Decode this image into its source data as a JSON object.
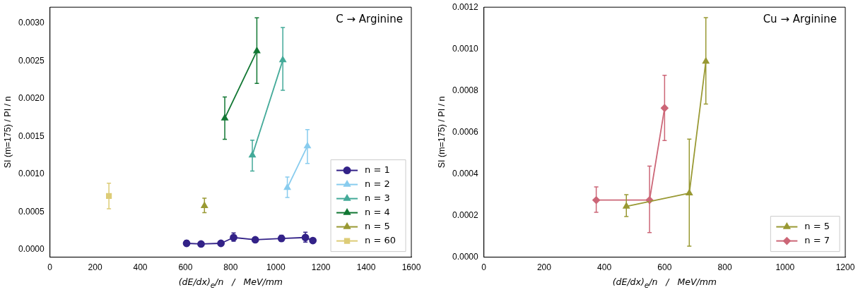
{
  "chart_data": [
    {
      "type": "line",
      "annotations": [
        "C → Arginine"
      ],
      "xlabel": "(dE/dx)$_{e}$/n   /   MeV/mm",
      "ylabel": "SI (m=175) / PI / n",
      "xlim": [
        0,
        1600
      ],
      "xticks": [
        0,
        200,
        400,
        600,
        800,
        1000,
        1200,
        1400,
        1600
      ],
      "ylim": [
        -0.0001,
        0.00321
      ],
      "yticks": [
        {
          "value": 0,
          "label": "0.0000"
        },
        {
          "value": 0.0005,
          "label": "0.0005"
        },
        {
          "value": 0.001,
          "label": "0.0010"
        },
        {
          "value": 0.0015,
          "label": "0.0015"
        },
        {
          "value": 0.002,
          "label": "0.0020"
        },
        {
          "value": 0.0025,
          "label": "0.0025"
        },
        {
          "value": 0.003,
          "label": "0.0030"
        }
      ],
      "legend": "bottom right",
      "grid": false,
      "series": [
        {
          "name": "n = 1",
          "color": "#332288",
          "marker": "circle",
          "x": [
            605,
            669,
            757,
            813,
            909,
            1025,
            1131,
            1164
          ],
          "values": [
            8.3e-05,
            7.4e-05,
            8.3e-05,
            0.00016,
            0.00013,
            0.000147,
            0.00016,
            0.00012
          ],
          "errors": [
            [
              5e-05,
              0.00012
            ],
            null,
            null,
            [
              0.00011,
              0.00022
            ],
            null,
            [
              0.00011,
              0.00019
            ],
            [
              0.0001,
              0.00023
            ],
            null
          ]
        },
        {
          "name": "n = 2",
          "color": "#88ccee",
          "marker": "triangle",
          "x": [
            1051,
            1140
          ],
          "values": [
            0.00082,
            0.00137
          ],
          "errors": [
            [
              0.00069,
              0.00096
            ],
            [
              0.00114,
              0.00159
            ]
          ]
        },
        {
          "name": "n = 3",
          "color": "#44aa99",
          "marker": "triangle",
          "x": [
            896,
            1031
          ],
          "values": [
            0.00125,
            0.00251
          ],
          "errors": [
            [
              0.00104,
              0.00145
            ],
            [
              0.00211,
              0.00294
            ]
          ]
        },
        {
          "name": "n = 4",
          "color": "#117733",
          "marker": "triangle",
          "x": [
            774,
            916
          ],
          "values": [
            0.00174,
            0.00263
          ],
          "errors": [
            [
              0.00146,
              0.00202
            ],
            [
              0.0022,
              0.00307
            ]
          ]
        },
        {
          "name": "n = 5",
          "color": "#999933",
          "marker": "triangle",
          "x": [
            684
          ],
          "values": [
            0.00058
          ],
          "errors": [
            [
              0.00049,
              0.00068
            ]
          ]
        },
        {
          "name": "n = 60",
          "color": "#ddcc77",
          "marker": "square",
          "x": [
            261
          ],
          "values": [
            0.00071
          ],
          "errors": [
            [
              0.00054,
              0.00088
            ]
          ]
        }
      ]
    },
    {
      "type": "line",
      "annotations": [
        "Cu → Arginine"
      ],
      "xlabel": "(dE/dx)$_{e}$/n   /   MeV/mm",
      "ylabel": "SI (m=175) / PI / n",
      "xlim": [
        0,
        1200
      ],
      "xticks": [
        0,
        200,
        400,
        600,
        800,
        1000,
        1200
      ],
      "ylim": [
        0,
        0.0012
      ],
      "yticks": [
        {
          "value": 0,
          "label": "0.0000"
        },
        {
          "value": 0.0002,
          "label": "0.0002"
        },
        {
          "value": 0.0004,
          "label": "0.0004"
        },
        {
          "value": 0.0006,
          "label": "0.0006"
        },
        {
          "value": 0.0008,
          "label": "0.0008"
        },
        {
          "value": 0.001,
          "label": "0.0010"
        },
        {
          "value": 0.0012,
          "label": "0.0012"
        }
      ],
      "legend": "bottom right",
      "grid": false,
      "series": [
        {
          "name": "n = 5",
          "color": "#999933",
          "marker": "triangle",
          "x": [
            473,
            682,
            737
          ],
          "values": [
            0.000244,
            0.000307,
            0.00094
          ],
          "errors": [
            [
              0.000195,
              0.0003
            ],
            [
              5.3e-05,
              0.000567
            ],
            [
              0.000735,
              0.00115
            ]
          ]
        },
        {
          "name": "n = 7",
          "color": "#cc6677",
          "marker": "diamond",
          "x": [
            373,
            550,
            600
          ],
          "values": [
            0.000274,
            0.000274,
            0.000716
          ],
          "errors": [
            [
              0.000215,
              0.000337
            ],
            [
              0.000118,
              0.000437
            ],
            [
              0.00056,
              0.000873
            ]
          ]
        }
      ]
    }
  ]
}
